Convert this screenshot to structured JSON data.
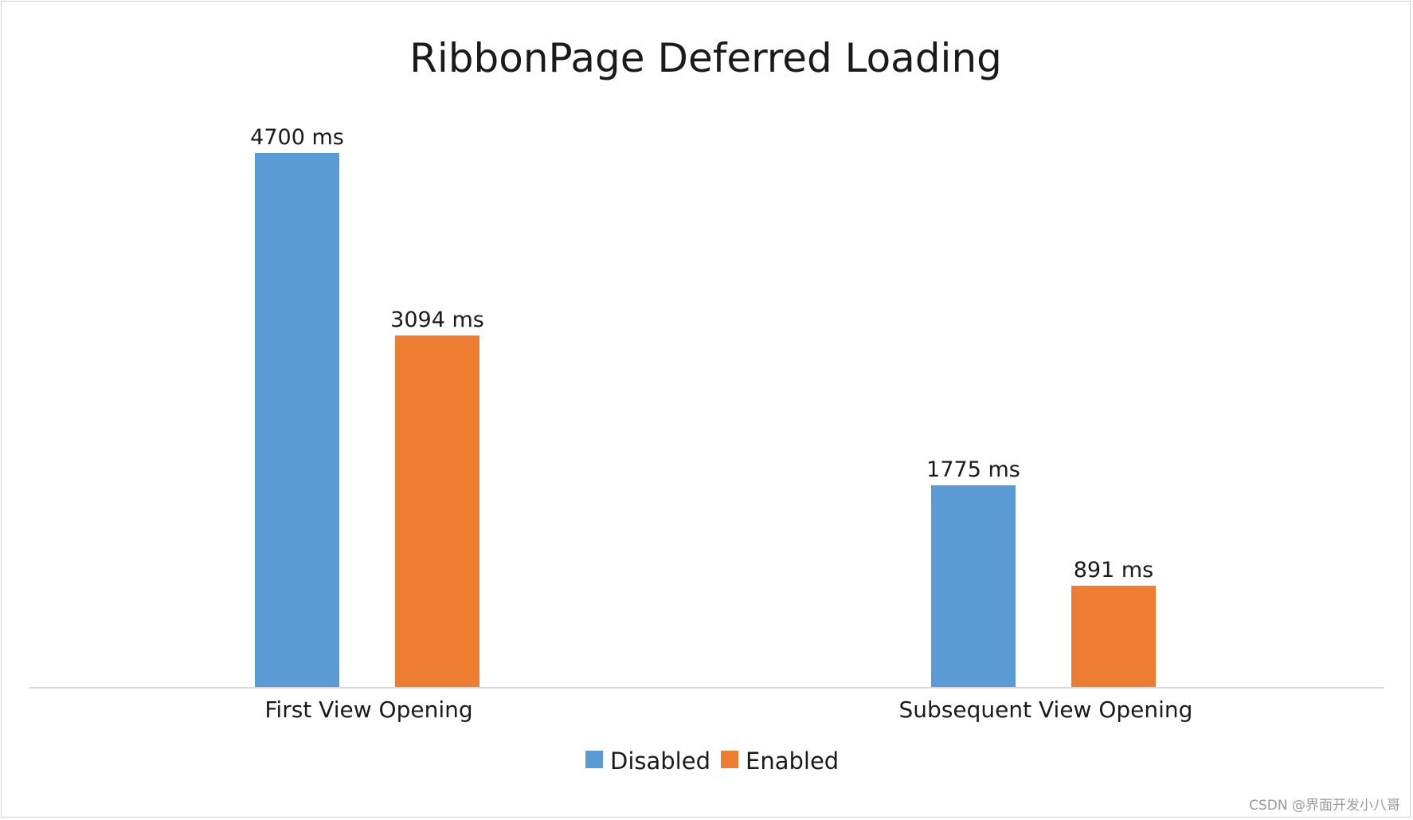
{
  "chart_data": {
    "type": "bar",
    "title": "RibbonPage Deferred Loading",
    "xlabel": "",
    "ylabel": "",
    "categories": [
      "First View Opening",
      "Subsequent View Opening"
    ],
    "series": [
      {
        "name": "Disabled",
        "color": "#5b9bd5",
        "values": [
          4700,
          1775
        ],
        "labels": [
          "4700 ms",
          "1775 ms"
        ]
      },
      {
        "name": "Enabled",
        "color": "#ed7d31",
        "values": [
          3094,
          891
        ],
        "labels": [
          "3094 ms",
          "891 ms"
        ]
      }
    ],
    "ylim": [
      0,
      4700
    ],
    "grid": false,
    "legend": "bottom"
  },
  "watermark": "CSDN @界面开发小八哥"
}
